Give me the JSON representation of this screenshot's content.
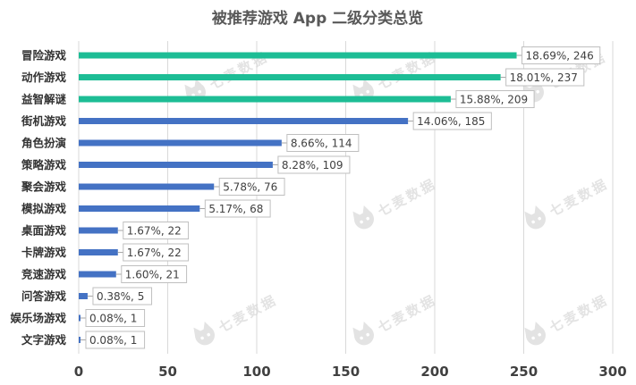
{
  "chart_data": {
    "type": "bar",
    "orientation": "horizontal",
    "title": "被推荐游戏 App 二级分类总览",
    "xlabel": "",
    "ylabel": "",
    "xlim": [
      0,
      300
    ],
    "xticks": [
      "0",
      "50",
      "100",
      "150",
      "200",
      "250",
      "300"
    ],
    "grid": "vertical",
    "legend": "none",
    "categories": [
      "冒险游戏",
      "动作游戏",
      "益智解谜",
      "街机游戏",
      "角色扮演",
      "策略游戏",
      "聚会游戏",
      "模拟游戏",
      "桌面游戏",
      "卡牌游戏",
      "竞速游戏",
      "问答游戏",
      "娱乐场游戏",
      "文字游戏"
    ],
    "values": [
      246,
      237,
      209,
      185,
      114,
      109,
      76,
      68,
      22,
      22,
      21,
      5,
      1,
      1
    ],
    "data_labels": [
      "18.69%, 246",
      "18.01%, 237",
      "15.88%, 209",
      "14.06%, 185",
      "8.66%, 114",
      "8.28%, 109",
      "5.78%, 76",
      "5.17%, 68",
      "1.67%, 22",
      "1.67%, 22",
      "1.60%, 21",
      "0.38%, 5",
      "0.08%, 1",
      "0.08%, 1"
    ],
    "highlight_count": 3,
    "colors": {
      "highlight": "#1dbd95",
      "normal": "#4472c4",
      "grid": "#d9d9d9"
    }
  },
  "watermark": {
    "text": "七麦数据",
    "icon": "qimai-cat-logo-icon"
  }
}
